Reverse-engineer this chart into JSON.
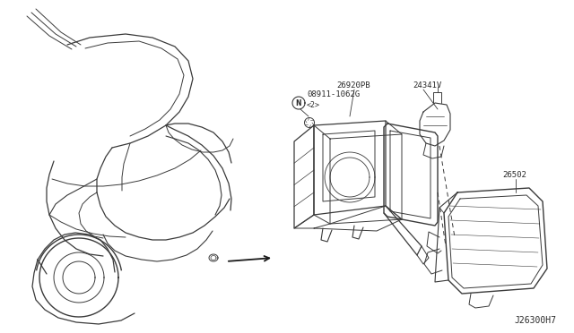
{
  "bg_color": "#ffffff",
  "line_color": "#3a3a3a",
  "text_color": "#2a2a2a",
  "fig_width": 6.4,
  "fig_height": 3.72,
  "labels": {
    "bolt": "08911-1062G",
    "bolt_sub": "<2>",
    "part1": "26920PB",
    "part2": "24341V",
    "part3": "26502",
    "diagram_id": "J26300H7"
  }
}
